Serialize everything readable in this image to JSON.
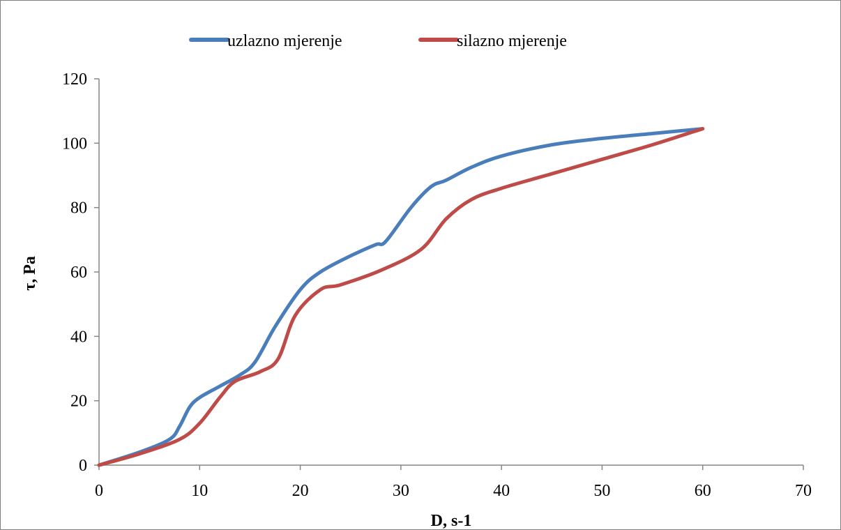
{
  "chart_data": {
    "type": "line",
    "title": "",
    "xlabel": "D, s-1",
    "ylabel": "τ, Pa",
    "xlim": [
      0,
      70
    ],
    "ylim": [
      0,
      120
    ],
    "xticks": [
      0,
      10,
      20,
      30,
      40,
      50,
      60,
      70
    ],
    "yticks": [
      0,
      20,
      40,
      60,
      80,
      100,
      120
    ],
    "grid": false,
    "legend_position": "top",
    "series": [
      {
        "name": "uzlazno mjerenje",
        "color": "#4a7ebb",
        "points": [
          [
            0,
            0
          ],
          [
            4,
            4
          ],
          [
            7,
            8
          ],
          [
            8,
            12
          ],
          [
            9,
            18
          ],
          [
            10,
            21
          ],
          [
            12,
            24.5
          ],
          [
            14,
            28
          ],
          [
            15.5,
            32
          ],
          [
            17.5,
            43
          ],
          [
            20,
            54.5
          ],
          [
            22,
            60
          ],
          [
            25,
            65
          ],
          [
            27.5,
            68.5
          ],
          [
            28.5,
            69.5
          ],
          [
            31,
            80
          ],
          [
            33,
            86.5
          ],
          [
            34.5,
            88.5
          ],
          [
            37,
            92.5
          ],
          [
            40,
            96
          ],
          [
            45,
            99.5
          ],
          [
            50,
            101.5
          ],
          [
            55,
            103
          ],
          [
            60,
            104.5
          ]
        ]
      },
      {
        "name": "silazno mjerenje",
        "color": "#be4b48",
        "points": [
          [
            0,
            0
          ],
          [
            4,
            3.5
          ],
          [
            8,
            8
          ],
          [
            10,
            13
          ],
          [
            12,
            21
          ],
          [
            13.5,
            26
          ],
          [
            16,
            29
          ],
          [
            17.8,
            33
          ],
          [
            19.5,
            46.5
          ],
          [
            22,
            54.5
          ],
          [
            24,
            56
          ],
          [
            28,
            60.5
          ],
          [
            32,
            67
          ],
          [
            34.5,
            76.5
          ],
          [
            37,
            82.5
          ],
          [
            40,
            86
          ],
          [
            45,
            90.5
          ],
          [
            50,
            95
          ],
          [
            55,
            99.5
          ],
          [
            60,
            104.5
          ]
        ]
      }
    ]
  }
}
